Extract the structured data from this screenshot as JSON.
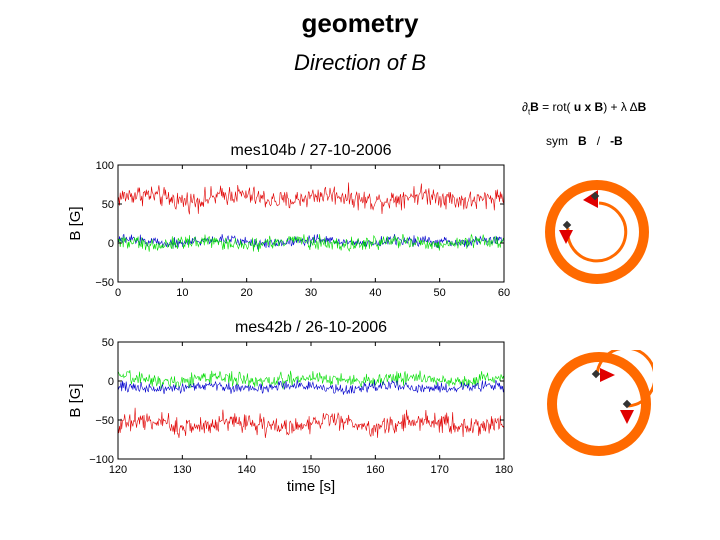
{
  "page": {
    "title": "geometry",
    "subtitle": "Direction of B",
    "equation": {
      "lhs_sym": "∂",
      "lhs_sub": "t",
      "lhs_var": "B",
      "rhs_text": " = rot( ",
      "u": "u",
      "x": " x ",
      "B": "B",
      "close": ") + λ Δ",
      "B2": "B"
    },
    "symmetry": {
      "label": "sym",
      "b_pos": "B",
      "sep": "/",
      "b_neg": "-B"
    }
  },
  "colors": {
    "red": "#e00000",
    "green": "#00dd00",
    "blue": "#0000cc",
    "orange": "#ff6a00",
    "arrow": "#e00000"
  },
  "chart_data": [
    {
      "type": "line",
      "title": "mes104b / 27-10-2006",
      "xlabel": "",
      "ylabel": "B [G]",
      "xlim": [
        0,
        60
      ],
      "ylim": [
        -50,
        100
      ],
      "xticks": [
        0,
        10,
        20,
        30,
        40,
        50,
        60
      ],
      "yticks": [
        -50,
        0,
        50,
        100
      ],
      "series": [
        {
          "name": "red component",
          "color": "#e00000",
          "mean": 58,
          "amp": 12
        },
        {
          "name": "blue component",
          "color": "#0000cc",
          "mean": 2,
          "amp": 6
        },
        {
          "name": "green component",
          "color": "#00dd00",
          "mean": 0,
          "amp": 8
        }
      ]
    },
    {
      "type": "line",
      "title": "mes42b / 26-10-2006",
      "xlabel": "time [s]",
      "ylabel": "B [G]",
      "xlim": [
        120,
        180
      ],
      "ylim": [
        -100,
        50
      ],
      "xticks": [
        120,
        130,
        140,
        150,
        160,
        170,
        180
      ],
      "yticks": [
        -100,
        -50,
        0,
        50
      ],
      "series": [
        {
          "name": "red component",
          "color": "#e00000",
          "mean": -55,
          "amp": 12
        },
        {
          "name": "green component",
          "color": "#00dd00",
          "mean": 2,
          "amp": 8
        },
        {
          "name": "blue component",
          "color": "#0000cc",
          "mean": -8,
          "amp": 6
        }
      ]
    }
  ]
}
